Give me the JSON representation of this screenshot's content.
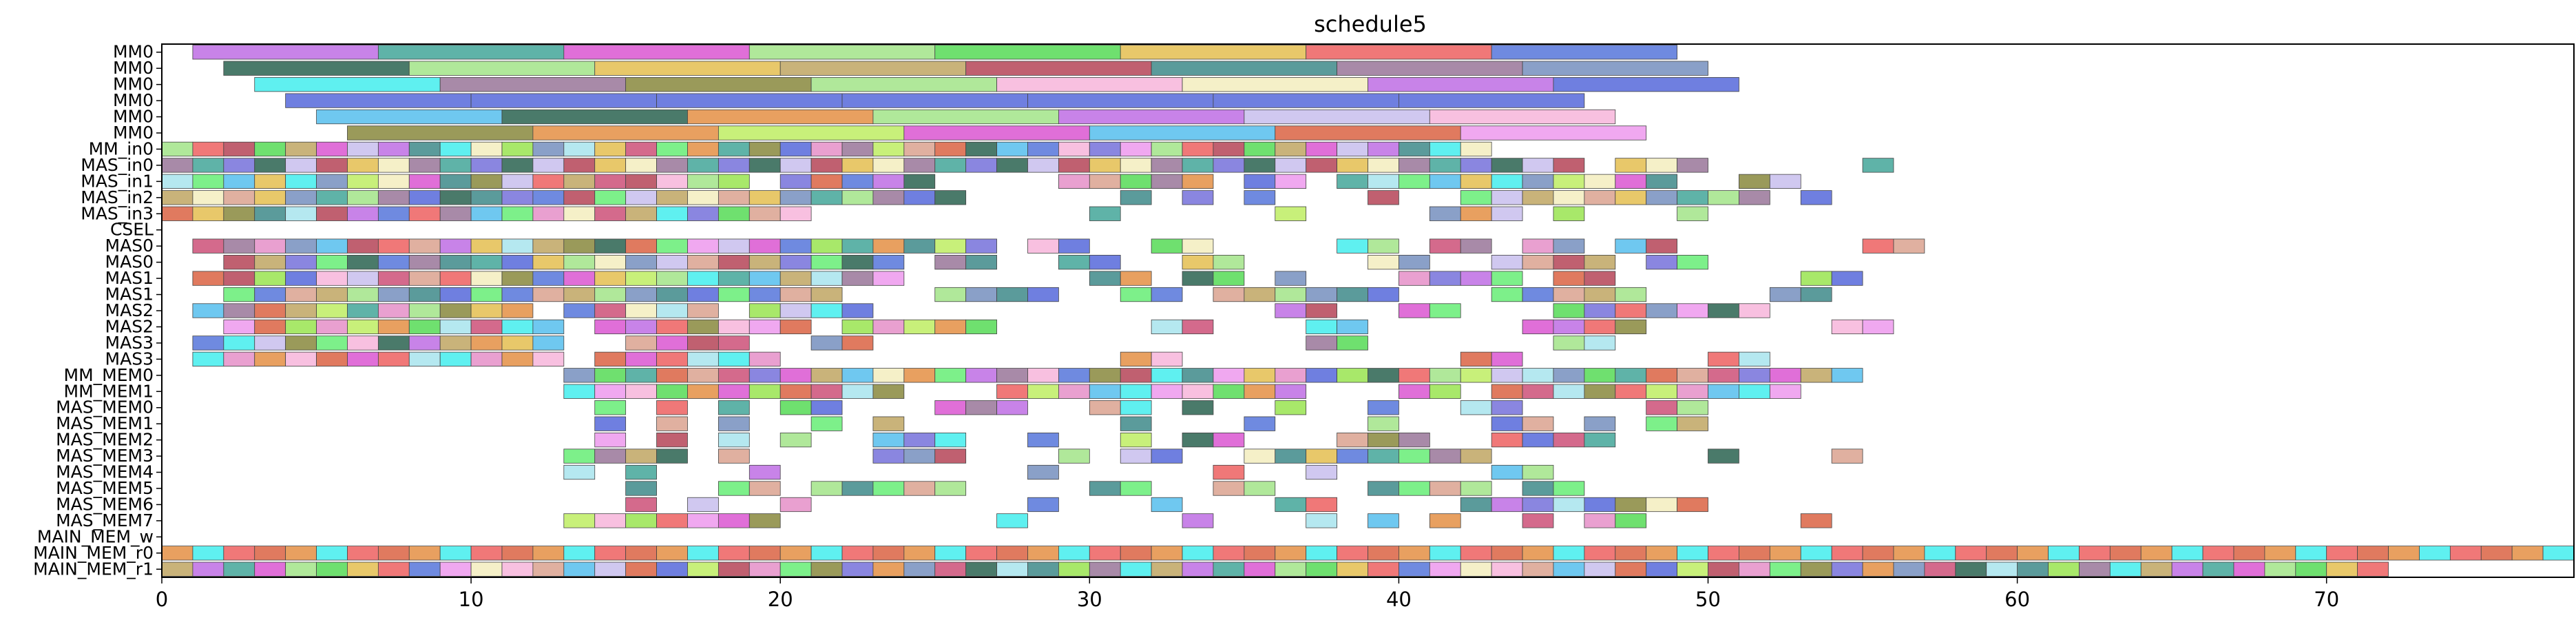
{
  "chart_data": {
    "type": "gantt",
    "title": "schedule5",
    "xlim": [
      0,
      78
    ],
    "x_ticks": [
      0,
      10,
      20,
      30,
      40,
      50,
      60,
      70
    ],
    "rows": [
      "MM0",
      "MM0",
      "MM0",
      "MM0",
      "MM0",
      "MM0",
      "MM_in0",
      "MAS_in0",
      "MAS_in1",
      "MAS_in2",
      "MAS_in3",
      "CSEL",
      "MAS0",
      "MAS0",
      "MAS1",
      "MAS1",
      "MAS2",
      "MAS2",
      "MAS3",
      "MAS3",
      "MM_MEM0",
      "MM_MEM1",
      "MAS_MEM0",
      "MAS_MEM1",
      "MAS_MEM2",
      "MAS_MEM3",
      "MAS_MEM4",
      "MAS_MEM5",
      "MAS_MEM6",
      "MAS_MEM7",
      "MAIN_MEM_w",
      "MAIN_MEM_r0",
      "MAIN_MEM_r1"
    ],
    "palette": [
      "#c9b37a",
      "#e07a5f",
      "#5fb3a8",
      "#d46a8c",
      "#7df08a",
      "#e9a0d0",
      "#8a86e0",
      "#a8e86a",
      "#6f8ae0",
      "#e8a060",
      "#f5f0c8",
      "#c883e8",
      "#5b9b9b",
      "#b5e8f0",
      "#a88aa8",
      "#6fe06f",
      "#6f7fe0",
      "#5ff0f0",
      "#c06070",
      "#f0a8f0",
      "#b0e89a",
      "#e06fd8",
      "#e8c86a",
      "#6fc8f0",
      "#8aa0c8",
      "#f07878",
      "#4a7a6a",
      "#c8f07a",
      "#e0b0a0",
      "#f8c0e0",
      "#d0c8f0",
      "#9a9a5a"
    ],
    "blocks": [
      [
        [
          1,
          7
        ],
        [
          7,
          13
        ],
        [
          13,
          19
        ],
        [
          19,
          25
        ],
        [
          25,
          31
        ],
        [
          31,
          37
        ],
        [
          37,
          43
        ],
        [
          43,
          49
        ]
      ],
      [
        [
          2,
          8
        ],
        [
          8,
          14
        ],
        [
          14,
          20
        ],
        [
          20,
          26
        ],
        [
          26,
          32
        ],
        [
          32,
          38
        ],
        [
          38,
          44
        ],
        [
          44,
          50
        ]
      ],
      [
        [
          3,
          9
        ],
        [
          9,
          15
        ],
        [
          15,
          21
        ],
        [
          21,
          27
        ],
        [
          27,
          33
        ],
        [
          33,
          39
        ],
        [
          39,
          45
        ],
        [
          45,
          51
        ]
      ],
      [
        [
          4,
          10
        ],
        [
          10,
          16
        ],
        [
          16,
          22
        ],
        [
          22,
          28
        ],
        [
          28,
          34
        ],
        [
          34,
          40
        ],
        [
          40,
          46
        ]
      ],
      [
        [
          5,
          11
        ],
        [
          11,
          17
        ],
        [
          17,
          23
        ],
        [
          23,
          29
        ],
        [
          29,
          35
        ],
        [
          35,
          41
        ],
        [
          41,
          47
        ]
      ],
      [
        [
          6,
          12
        ],
        [
          12,
          18
        ],
        [
          18,
          24
        ],
        [
          24,
          30
        ],
        [
          30,
          36
        ],
        [
          36,
          42
        ],
        [
          42,
          48
        ]
      ],
      [
        [
          0,
          43
        ]
      ],
      [
        [
          0,
          46
        ],
        [
          47,
          50
        ],
        [
          55,
          56
        ]
      ],
      [
        [
          0,
          19
        ],
        [
          20,
          25
        ],
        [
          29,
          34
        ],
        [
          35,
          37
        ],
        [
          38,
          49
        ],
        [
          51,
          53
        ]
      ],
      [
        [
          0,
          26
        ],
        [
          31,
          32
        ],
        [
          33,
          34
        ],
        [
          35,
          36
        ],
        [
          39,
          40
        ],
        [
          42,
          52
        ],
        [
          53,
          54
        ]
      ],
      [
        [
          0,
          21
        ],
        [
          30,
          31
        ],
        [
          36,
          37
        ],
        [
          41,
          44
        ],
        [
          45,
          46
        ],
        [
          49,
          50
        ]
      ],
      [],
      [
        [
          1,
          25
        ],
        [
          25,
          27
        ],
        [
          28,
          30
        ],
        [
          32,
          34
        ],
        [
          38,
          40
        ],
        [
          41,
          43
        ],
        [
          44,
          46
        ],
        [
          47,
          49
        ],
        [
          55,
          57
        ]
      ],
      [
        [
          2,
          11
        ],
        [
          11,
          20
        ],
        [
          20,
          24
        ],
        [
          25,
          27
        ],
        [
          29,
          31
        ],
        [
          33,
          35
        ],
        [
          39,
          41
        ],
        [
          43,
          47
        ],
        [
          48,
          50
        ]
      ],
      [
        [
          1,
          9
        ],
        [
          9,
          18
        ],
        [
          18,
          24
        ],
        [
          30,
          32
        ],
        [
          33,
          35
        ],
        [
          36,
          37
        ],
        [
          40,
          44
        ],
        [
          45,
          47
        ],
        [
          53,
          55
        ]
      ],
      [
        [
          2,
          11
        ],
        [
          11,
          20
        ],
        [
          20,
          22
        ],
        [
          25,
          29
        ],
        [
          31,
          33
        ],
        [
          34,
          38
        ],
        [
          38,
          40
        ],
        [
          43,
          48
        ],
        [
          52,
          54
        ]
      ],
      [
        [
          1,
          5
        ],
        [
          5,
          12
        ],
        [
          13,
          18
        ],
        [
          19,
          23
        ],
        [
          36,
          38
        ],
        [
          40,
          42
        ],
        [
          45,
          52
        ]
      ],
      [
        [
          2,
          13
        ],
        [
          14,
          21
        ],
        [
          22,
          27
        ],
        [
          32,
          34
        ],
        [
          37,
          39
        ],
        [
          44,
          48
        ],
        [
          54,
          56
        ]
      ],
      [
        [
          1,
          8
        ],
        [
          8,
          13
        ],
        [
          15,
          19
        ],
        [
          21,
          23
        ],
        [
          37,
          39
        ],
        [
          45,
          47
        ]
      ],
      [
        [
          1,
          7
        ],
        [
          7,
          13
        ],
        [
          14,
          20
        ],
        [
          31,
          33
        ],
        [
          42,
          44
        ],
        [
          50,
          52
        ]
      ],
      [
        [
          13,
          55
        ]
      ],
      [
        [
          13,
          19
        ],
        [
          18,
          24
        ],
        [
          27,
          31
        ],
        [
          31,
          37
        ],
        [
          40,
          42
        ],
        [
          43,
          53
        ]
      ],
      [
        [
          14,
          15
        ],
        [
          16,
          17
        ],
        [
          18,
          19
        ],
        [
          20,
          22
        ],
        [
          25,
          28
        ],
        [
          30,
          32
        ],
        [
          33,
          34
        ],
        [
          36,
          37
        ],
        [
          39,
          40
        ],
        [
          42,
          44
        ],
        [
          48,
          50
        ]
      ],
      [
        [
          14,
          15
        ],
        [
          16,
          17
        ],
        [
          18,
          19
        ],
        [
          21,
          22
        ],
        [
          23,
          24
        ],
        [
          31,
          32
        ],
        [
          35,
          36
        ],
        [
          39,
          40
        ],
        [
          43,
          45
        ],
        [
          46,
          47
        ],
        [
          48,
          50
        ]
      ],
      [
        [
          14,
          15
        ],
        [
          16,
          17
        ],
        [
          18,
          19
        ],
        [
          20,
          21
        ],
        [
          23,
          26
        ],
        [
          28,
          29
        ],
        [
          31,
          32
        ],
        [
          33,
          35
        ],
        [
          38,
          41
        ],
        [
          43,
          47
        ]
      ],
      [
        [
          13,
          17
        ],
        [
          18,
          19
        ],
        [
          23,
          26
        ],
        [
          29,
          30
        ],
        [
          31,
          33
        ],
        [
          35,
          43
        ],
        [
          50,
          51
        ],
        [
          54,
          55
        ]
      ],
      [
        [
          13,
          14
        ],
        [
          15,
          16
        ],
        [
          19,
          20
        ],
        [
          28,
          29
        ],
        [
          34,
          35
        ],
        [
          37,
          38
        ],
        [
          43,
          45
        ]
      ],
      [
        [
          15,
          16
        ],
        [
          18,
          20
        ],
        [
          21,
          22
        ],
        [
          22,
          26
        ],
        [
          30,
          31
        ],
        [
          31,
          32
        ],
        [
          34,
          36
        ],
        [
          39,
          43
        ],
        [
          44,
          46
        ]
      ],
      [
        [
          15,
          16
        ],
        [
          17,
          18
        ],
        [
          20,
          21
        ],
        [
          28,
          29
        ],
        [
          32,
          33
        ],
        [
          36,
          38
        ],
        [
          42,
          50
        ]
      ],
      [
        [
          13,
          20
        ],
        [
          27,
          28
        ],
        [
          33,
          34
        ],
        [
          37,
          38
        ],
        [
          39,
          40
        ],
        [
          41,
          42
        ],
        [
          44,
          45
        ],
        [
          46,
          48
        ],
        [
          53,
          54
        ]
      ],
      [],
      [
        [
          0,
          78
        ]
      ],
      [
        [
          0,
          72
        ]
      ]
    ]
  }
}
